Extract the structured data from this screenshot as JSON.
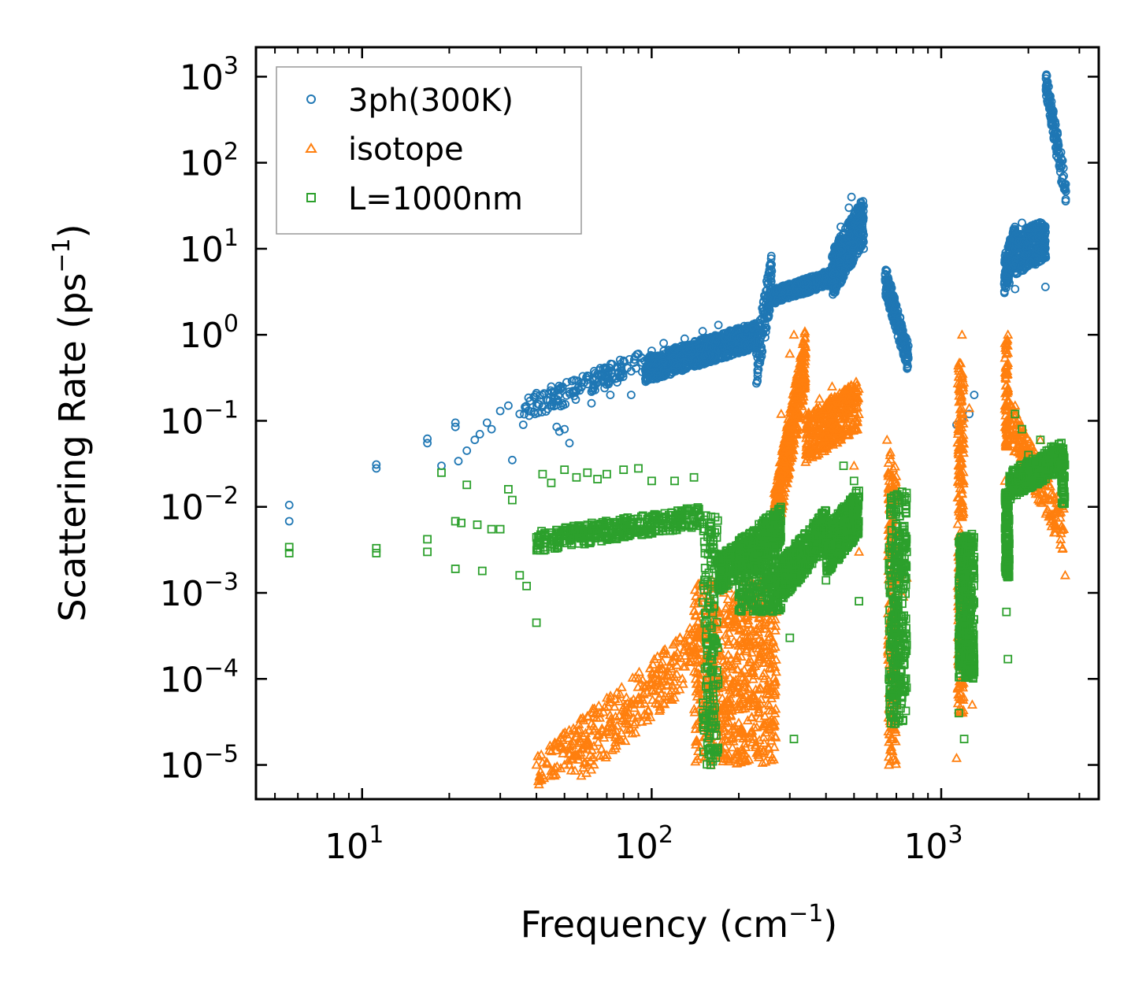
{
  "chart_data": {
    "type": "scatter",
    "xscale": "log",
    "yscale": "log",
    "xlim": [
      4.3,
      3500
    ],
    "ylim": [
      4e-06,
      2200
    ],
    "xlabel": "Frequency (cm",
    "xlabel_exp": "−1",
    "xlabel_tail": ")",
    "ylabel": "Scattering Rate (ps",
    "ylabel_exp": "−1",
    "ylabel_tail": ")",
    "legend_position": "upper-left",
    "x_ticks": [
      {
        "value": 10,
        "base": "10",
        "exp": "1"
      },
      {
        "value": 100,
        "base": "10",
        "exp": "2"
      },
      {
        "value": 1000,
        "base": "10",
        "exp": "3"
      }
    ],
    "y_ticks": [
      {
        "value": 1e-05,
        "base": "10",
        "exp": "−5"
      },
      {
        "value": 0.0001,
        "base": "10",
        "exp": "−4"
      },
      {
        "value": 0.001,
        "base": "10",
        "exp": "−3"
      },
      {
        "value": 0.01,
        "base": "10",
        "exp": "−2"
      },
      {
        "value": 0.1,
        "base": "10",
        "exp": "−1"
      },
      {
        "value": 1,
        "base": "10",
        "exp": "0"
      },
      {
        "value": 10,
        "base": "10",
        "exp": "1"
      },
      {
        "value": 100,
        "base": "10",
        "exp": "2"
      },
      {
        "value": 1000,
        "base": "10",
        "exp": "3"
      }
    ],
    "series": [
      {
        "name": "3ph(300K)",
        "color": "#1f77b4",
        "marker": "circle",
        "points": [
          [
            5.6,
            0.0105
          ],
          [
            5.6,
            0.0068
          ],
          [
            11.2,
            0.031
          ],
          [
            11.2,
            0.028
          ],
          [
            16.8,
            0.062
          ],
          [
            16.8,
            0.055
          ],
          [
            18.8,
            0.03
          ],
          [
            21,
            0.095
          ],
          [
            21,
            0.085
          ],
          [
            21.5,
            0.034
          ],
          [
            23,
            0.045
          ],
          [
            24.5,
            0.06
          ],
          [
            25.5,
            0.07
          ],
          [
            27,
            0.095
          ],
          [
            28,
            0.08
          ],
          [
            30,
            0.13
          ],
          [
            32,
            0.15
          ],
          [
            33,
            0.035
          ],
          [
            35,
            0.12
          ],
          [
            36,
            0.09
          ],
          [
            38,
            0.17
          ],
          [
            40,
            0.21
          ],
          [
            42,
            0.2
          ],
          [
            45,
            0.25
          ],
          [
            47,
            0.085
          ],
          [
            48,
            0.075
          ],
          [
            50,
            0.08
          ],
          [
            52,
            0.055
          ],
          [
            55,
            0.22
          ],
          [
            60,
            0.3
          ],
          [
            62,
            0.16
          ],
          [
            65,
            0.35
          ],
          [
            70,
            0.4
          ],
          [
            72,
            0.2
          ],
          [
            80,
            0.5
          ],
          [
            85,
            0.2
          ],
          [
            90,
            0.6
          ],
          [
            100,
            0.65
          ],
          [
            110,
            0.8
          ],
          [
            130,
            0.9
          ],
          [
            150,
            1.1
          ],
          [
            170,
            1.3
          ],
          [
            190,
            1.1
          ],
          [
            210,
            0.8
          ],
          [
            230,
            0.6
          ],
          [
            260,
            5.5
          ],
          [
            270,
            3.5
          ],
          [
            300,
            3.6
          ],
          [
            340,
            4.0
          ],
          [
            380,
            4.5
          ],
          [
            420,
            8
          ],
          [
            450,
            18
          ],
          [
            480,
            30
          ],
          [
            490,
            40
          ],
          [
            510,
            25
          ],
          [
            540,
            10
          ],
          [
            650,
            5.5
          ],
          [
            700,
            2.2
          ],
          [
            740,
            1.0
          ],
          [
            760,
            0.55
          ],
          [
            1130,
            0.09
          ],
          [
            1180,
            0.1
          ],
          [
            1250,
            0.12
          ],
          [
            1300,
            0.2
          ],
          [
            1680,
            6.5
          ],
          [
            1720,
            4.0
          ],
          [
            1800,
            3.4
          ],
          [
            1900,
            20
          ],
          [
            2000,
            15
          ],
          [
            2150,
            18
          ],
          [
            2250,
            12
          ],
          [
            2290,
            3.6
          ],
          [
            2300,
            950
          ],
          [
            2350,
            600
          ],
          [
            2400,
            300
          ],
          [
            2450,
            200
          ],
          [
            2500,
            120
          ],
          [
            2600,
            60
          ],
          [
            2680,
            50
          ]
        ],
        "bands": [
          {
            "x": [
              36,
              95
            ],
            "y_lo_frac": 0.75,
            "y_hi_frac": 1.35,
            "y": [
              0.13,
              0.5
            ],
            "n": 160
          },
          {
            "x": [
              95,
              230
            ],
            "y_lo": 0.3,
            "y_hi": 1.3,
            "y": [
              0.4,
              1.0
            ],
            "n": 900
          },
          {
            "x": [
              230,
              260
            ],
            "y": [
              0.5,
              5.0
            ],
            "y_lo_frac": 0.5,
            "y_hi_frac": 1.8,
            "n": 120
          },
          {
            "x": [
              260,
              420
            ],
            "y": [
              2.8,
              4.8
            ],
            "y_lo_frac": 0.8,
            "y_hi_frac": 1.2,
            "n": 450
          },
          {
            "x": [
              420,
              540
            ],
            "y": [
              6,
              25
            ],
            "y_lo_frac": 0.45,
            "y_hi_frac": 1.6,
            "n": 450
          },
          {
            "x": [
              640,
              770
            ],
            "y": [
              5.0,
              0.6
            ],
            "y_lo_frac": 0.6,
            "y_hi_frac": 1.3,
            "n": 200
          },
          {
            "x": [
              1650,
              1800
            ],
            "y": [
              5,
              12
            ],
            "y_lo_frac": 0.6,
            "y_hi_frac": 1.6,
            "n": 150
          },
          {
            "x": [
              1800,
              2300
            ],
            "y": [
              10,
              15
            ],
            "y_lo_frac": 0.5,
            "y_hi_frac": 1.5,
            "n": 300
          },
          {
            "x": [
              2300,
              2700
            ],
            "y": [
              900,
              50
            ],
            "y_lo_frac": 0.65,
            "y_hi_frac": 1.3,
            "n": 120
          }
        ]
      },
      {
        "name": "isotope",
        "color": "#ff7f0e",
        "marker": "triangle",
        "points": [
          [
            40,
            1e-05
          ],
          [
            50,
            1e-05
          ],
          [
            52,
            1e-05
          ],
          [
            60,
            1e-05
          ],
          [
            70,
            1.3e-05
          ],
          [
            75,
            2.1e-05
          ],
          [
            80,
            3.5e-05
          ],
          [
            90,
            6e-05
          ],
          [
            100,
            0.0001
          ],
          [
            120,
            0.00018
          ],
          [
            150,
            0.0004
          ],
          [
            160,
            1e-05
          ],
          [
            190,
            0.0006
          ],
          [
            230,
            0.0009
          ],
          [
            260,
            0.0015
          ],
          [
            280,
            0.12
          ],
          [
            300,
            0.6
          ],
          [
            310,
            1.0
          ],
          [
            330,
            0.5
          ],
          [
            350,
            0.12
          ],
          [
            380,
            0.18
          ],
          [
            420,
            0.25
          ],
          [
            460,
            0.2
          ],
          [
            500,
            0.03
          ],
          [
            520,
            0.003
          ],
          [
            650,
            0.06
          ],
          [
            660,
            1e-05
          ],
          [
            700,
            8e-05
          ],
          [
            740,
            0.0009
          ],
          [
            760,
            0.0015
          ],
          [
            1130,
            1.2e-05
          ],
          [
            1150,
            0.0003
          ],
          [
            1180,
            1.0
          ],
          [
            1250,
            0.14
          ],
          [
            1280,
            5e-05
          ],
          [
            1660,
            0.02
          ],
          [
            1700,
            1.0
          ],
          [
            1800,
            0.15
          ],
          [
            2200,
            0.06
          ],
          [
            2400,
            0.04
          ],
          [
            2650,
            0.0055
          ],
          [
            2680,
            0.0016
          ]
        ],
        "bands": [
          {
            "x": [
              40,
              150
            ],
            "y": [
              1e-05,
              0.0004
            ],
            "y_lo_frac": 0.5,
            "y_hi_frac": 1.3,
            "n": 220
          },
          {
            "x": [
              52,
              130
            ],
            "y": [
              1e-05,
              0.00015
            ],
            "y_lo_frac": 0.5,
            "y_hi_frac": 1.2,
            "n": 120
          },
          {
            "x": [
              140,
              270
            ],
            "y": [
              1e-05,
              0.0015
            ],
            "y_lo_frac": 1.0,
            "y_hi_frac": 1.0,
            "y_spread": "full",
            "n": 700
          },
          {
            "x": [
              265,
              340
            ],
            "y": [
              0.01,
              0.8
            ],
            "y_lo_frac": 0.3,
            "y_hi_frac": 1.5,
            "n": 450
          },
          {
            "x": [
              340,
              520
            ],
            "y": [
              0.08,
              0.2
            ],
            "y_lo_frac": 0.4,
            "y_hi_frac": 1.5,
            "n": 350
          },
          {
            "x": [
              655,
              700
            ],
            "y": [
              1e-05,
              0.05
            ],
            "y_spread": "full",
            "n": 220
          },
          {
            "x": [
              1140,
              1200
            ],
            "y": [
              4e-05,
              0.5
            ],
            "y_spread": "full",
            "n": 250
          },
          {
            "x": [
              1660,
              1700
            ],
            "y": [
              0.05,
              0.9
            ],
            "y_spread": "full",
            "n": 80
          },
          {
            "x": [
              1700,
              2650
            ],
            "y": [
              0.12,
              0.006
            ],
            "y_lo_frac": 0.5,
            "y_hi_frac": 1.6,
            "n": 200
          }
        ]
      },
      {
        "name": "L=1000nm",
        "color": "#2ca02c",
        "marker": "square",
        "points": [
          [
            5.6,
            0.0034
          ],
          [
            5.6,
            0.0029
          ],
          [
            11.2,
            0.0033
          ],
          [
            11.2,
            0.0029
          ],
          [
            16.8,
            0.0042
          ],
          [
            16.8,
            0.003
          ],
          [
            18.8,
            0.025
          ],
          [
            21,
            0.0068
          ],
          [
            21,
            0.0019
          ],
          [
            22,
            0.0065
          ],
          [
            23,
            0.018
          ],
          [
            25,
            0.0062
          ],
          [
            26,
            0.0018
          ],
          [
            28,
            0.0055
          ],
          [
            30,
            0.0055
          ],
          [
            32,
            0.016
          ],
          [
            33,
            0.012
          ],
          [
            35,
            0.0016
          ],
          [
            37,
            0.0012
          ],
          [
            40,
            0.00045
          ],
          [
            42,
            0.024
          ],
          [
            45,
            0.019
          ],
          [
            50,
            0.027
          ],
          [
            55,
            0.022
          ],
          [
            60,
            0.025
          ],
          [
            65,
            0.021
          ],
          [
            70,
            0.024
          ],
          [
            80,
            0.027
          ],
          [
            90,
            0.028
          ],
          [
            100,
            0.02
          ],
          [
            120,
            0.02
          ],
          [
            140,
            0.022
          ],
          [
            150,
            4e-05
          ],
          [
            160,
            1e-05
          ],
          [
            200,
            0.0009
          ],
          [
            240,
            0.0006
          ],
          [
            300,
            0.0003
          ],
          [
            310,
            2e-05
          ],
          [
            400,
            0.0014
          ],
          [
            460,
            0.03
          ],
          [
            500,
            0.02
          ],
          [
            520,
            0.0008
          ],
          [
            660,
            0.0001
          ],
          [
            700,
            0.005
          ],
          [
            760,
            0.003
          ],
          [
            1150,
            4e-05
          ],
          [
            1200,
            2e-05
          ],
          [
            1300,
            0.00012
          ],
          [
            1680,
            0.0006
          ],
          [
            1700,
            0.00017
          ],
          [
            1800,
            0.12
          ],
          [
            1900,
            0.08
          ],
          [
            2000,
            0.04
          ],
          [
            2200,
            0.06
          ],
          [
            2400,
            0.05
          ],
          [
            2650,
            0.012
          ]
        ],
        "bands": [
          {
            "x": [
              40,
              150
            ],
            "y": [
              0.004,
              0.008
            ],
            "y_lo_frac": 0.75,
            "y_hi_frac": 1.3,
            "n": 350
          },
          {
            "x": [
              150,
              170
            ],
            "y": [
              1e-05,
              0.008
            ],
            "y_spread": "full",
            "n": 160
          },
          {
            "x": [
              170,
              280
            ],
            "y": [
              0.002,
              0.008
            ],
            "y_lo_frac": 0.5,
            "y_hi_frac": 1.3,
            "n": 500
          },
          {
            "x": [
              200,
              280
            ],
            "y": [
              0.0006,
              0.004
            ],
            "y_spread": "full",
            "n": 300
          },
          {
            "x": [
              280,
              400
            ],
            "y": [
              0.002,
              0.008
            ],
            "y_lo_frac": 0.4,
            "y_hi_frac": 1.2,
            "n": 400
          },
          {
            "x": [
              400,
              520
            ],
            "y": [
              0.004,
              0.012
            ],
            "y_lo_frac": 0.4,
            "y_hi_frac": 1.4,
            "n": 400
          },
          {
            "x": [
              660,
              760
            ],
            "y": [
              3e-05,
              0.015
            ],
            "y_spread": "full",
            "n": 320
          },
          {
            "x": [
              1150,
              1300
            ],
            "y": [
              0.0001,
              0.005
            ],
            "y_spread": "full",
            "n": 400
          },
          {
            "x": [
              1660,
              1720
            ],
            "y": [
              0.0015,
              0.015
            ],
            "y_spread": "full",
            "n": 150
          },
          {
            "x": [
              1720,
              2650
            ],
            "y": [
              0.02,
              0.045
            ],
            "y_lo_frac": 0.6,
            "y_hi_frac": 1.3,
            "n": 400
          },
          {
            "x": [
              2600,
              2680
            ],
            "y": [
              0.01,
              0.04
            ],
            "y_spread": "full",
            "n": 40
          }
        ]
      }
    ]
  }
}
